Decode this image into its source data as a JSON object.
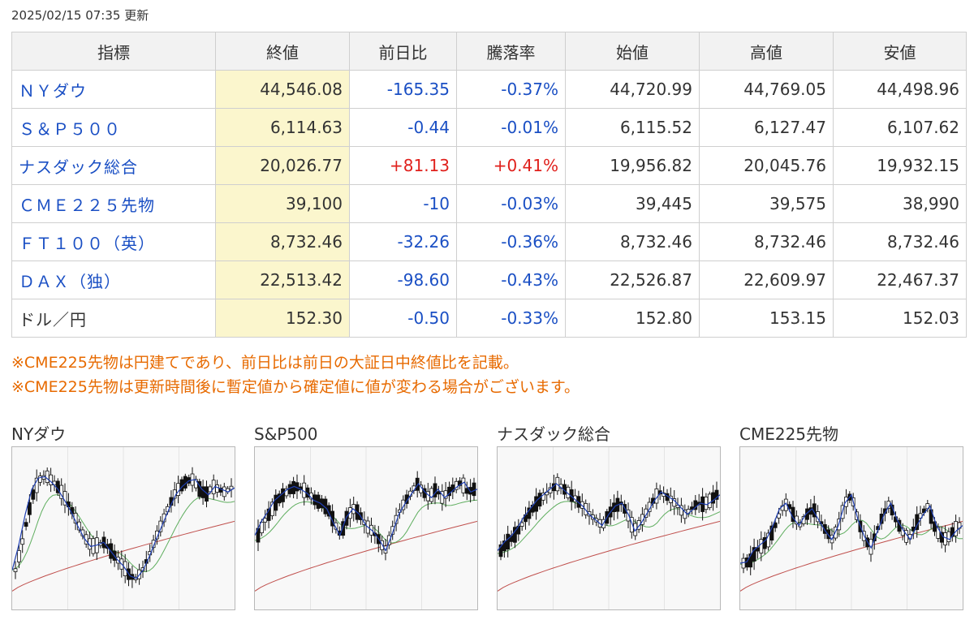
{
  "updated": "2025/02/15 07:35 更新",
  "table": {
    "headers": [
      "指標",
      "終値",
      "前日比",
      "騰落率",
      "始値",
      "高値",
      "安値"
    ],
    "rows": [
      {
        "name": "ＮＹダウ",
        "close": "44,546.08",
        "change": "-165.35",
        "pct": "-0.37%",
        "open": "44,720.99",
        "high": "44,769.05",
        "low": "44,498.96",
        "dir": "neg",
        "link": true
      },
      {
        "name": "Ｓ＆Ｐ５００",
        "close": "6,114.63",
        "change": "-0.44",
        "pct": "-0.01%",
        "open": "6,115.52",
        "high": "6,127.47",
        "low": "6,107.62",
        "dir": "neg",
        "link": true
      },
      {
        "name": "ナスダック総合",
        "close": "20,026.77",
        "change": "+81.13",
        "pct": "+0.41%",
        "open": "19,956.82",
        "high": "20,045.76",
        "low": "19,932.15",
        "dir": "pos",
        "link": true
      },
      {
        "name": "ＣＭＥ２２５先物",
        "close": "39,100",
        "change": "-10",
        "pct": "-0.03%",
        "open": "39,445",
        "high": "39,575",
        "low": "38,990",
        "dir": "neg",
        "link": true
      },
      {
        "name": "ＦＴ１００（英）",
        "close": "8,732.46",
        "change": "-32.26",
        "pct": "-0.36%",
        "open": "8,732.46",
        "high": "8,732.46",
        "low": "8,732.46",
        "dir": "neg",
        "link": true
      },
      {
        "name": "ＤＡＸ（独）",
        "close": "22,513.42",
        "change": "-98.60",
        "pct": "-0.43%",
        "open": "22,526.87",
        "high": "22,609.97",
        "low": "22,467.37",
        "dir": "neg",
        "link": true
      },
      {
        "name": "ドル／円",
        "close": "152.30",
        "change": "-0.50",
        "pct": "-0.33%",
        "open": "152.80",
        "high": "153.15",
        "low": "152.03",
        "dir": "neg",
        "link": false
      }
    ]
  },
  "notes": [
    "※CME225先物は円建てであり、前日比は前日の大証日中終値比を記載。",
    "※CME225先物は更新時間後に暫定値から確定値に値が変わる場合がございます。"
  ],
  "colors": {
    "negative": "#1a4fc4",
    "positive": "#e0201c",
    "note": "#e76a00",
    "close_bg": "#fbf6cd",
    "ma_short": "#1f3fb3",
    "ma_mid": "#5fae5f",
    "ma_long": "#c0504d"
  },
  "charts": [
    {
      "title": "NYダウ",
      "path": [
        0.8,
        0.62,
        0.4,
        0.22,
        0.14,
        0.13,
        0.17,
        0.22,
        0.3,
        0.38,
        0.48,
        0.57,
        0.63,
        0.62,
        0.6,
        0.66,
        0.72,
        0.77,
        0.84,
        0.86,
        0.8,
        0.7,
        0.58,
        0.47,
        0.36,
        0.26,
        0.2,
        0.16,
        0.15,
        0.22,
        0.26,
        0.2,
        0.22,
        0.24,
        0.21
      ]
    },
    {
      "title": "S&P500",
      "path": [
        0.55,
        0.45,
        0.38,
        0.3,
        0.26,
        0.22,
        0.2,
        0.22,
        0.25,
        0.3,
        0.32,
        0.36,
        0.46,
        0.55,
        0.42,
        0.36,
        0.4,
        0.48,
        0.52,
        0.58,
        0.66,
        0.54,
        0.4,
        0.32,
        0.25,
        0.18,
        0.24,
        0.28,
        0.22,
        0.28,
        0.24,
        0.2,
        0.17,
        0.24,
        0.22
      ]
    },
    {
      "title": "ナスダック総合",
      "path": [
        0.66,
        0.6,
        0.56,
        0.5,
        0.42,
        0.36,
        0.3,
        0.26,
        0.22,
        0.18,
        0.22,
        0.26,
        0.3,
        0.34,
        0.4,
        0.44,
        0.48,
        0.4,
        0.34,
        0.32,
        0.4,
        0.52,
        0.46,
        0.38,
        0.3,
        0.24,
        0.27,
        0.3,
        0.35,
        0.4,
        0.36,
        0.32,
        0.33,
        0.3,
        0.26
      ]
    },
    {
      "title": "CME225先物",
      "path": [
        0.75,
        0.74,
        0.66,
        0.62,
        0.58,
        0.48,
        0.36,
        0.32,
        0.42,
        0.48,
        0.4,
        0.36,
        0.44,
        0.52,
        0.58,
        0.48,
        0.32,
        0.26,
        0.44,
        0.56,
        0.64,
        0.52,
        0.4,
        0.32,
        0.44,
        0.52,
        0.58,
        0.48,
        0.4,
        0.34,
        0.48,
        0.56,
        0.58,
        0.52,
        0.48
      ]
    }
  ]
}
